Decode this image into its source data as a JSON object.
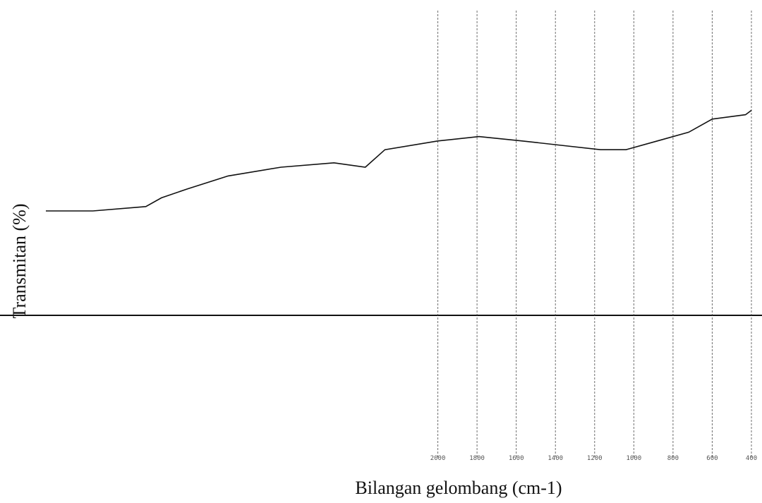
{
  "chart_data": {
    "type": "line",
    "x_label": "Bilangan gelombang (cm-1)",
    "y_label": "Transmitan (%)",
    "x": [
      4000,
      3760,
      3490,
      3410,
      3280,
      3070,
      2800,
      2530,
      2370,
      2270,
      2000,
      1790,
      1570,
      1370,
      1170,
      1040,
      880,
      720,
      600,
      430,
      400
    ],
    "series": [
      {
        "color": "#111111",
        "values": [
          55,
          55,
          56,
          58,
          60,
          63,
          65,
          66,
          65,
          69,
          71,
          72,
          71,
          70,
          69,
          69,
          71,
          73,
          76,
          77,
          78
        ]
      }
    ],
    "xlim": [
      4000,
      400
    ],
    "xticks": [
      2000,
      1800,
      1600,
      1400,
      1200,
      1000,
      800,
      600,
      400
    ],
    "ylim": [
      0,
      100
    ],
    "grid": true
  }
}
